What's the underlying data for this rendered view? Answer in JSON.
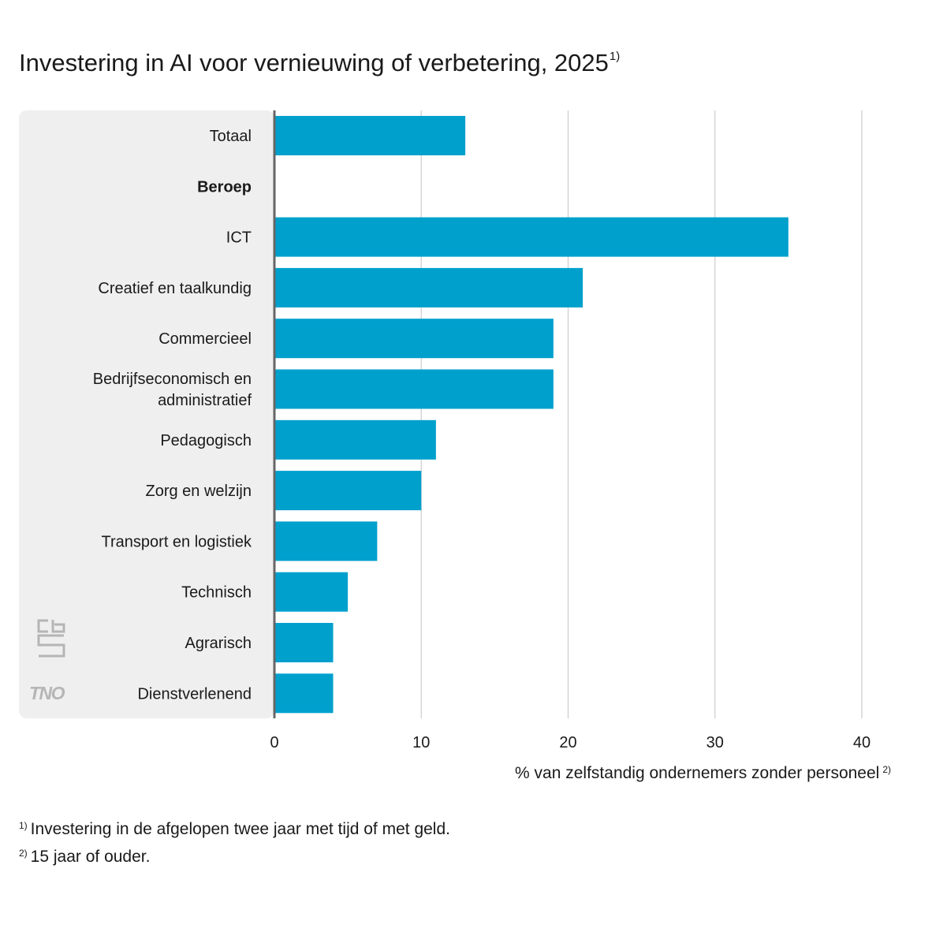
{
  "title": "Investering in AI voor vernieuwing of verbetering, 2025",
  "title_note": "1)",
  "colors": {
    "bar": "#00a0cd",
    "panel": "#efefef",
    "grid": "#cccccc",
    "axis": "#666666"
  },
  "chart_data": {
    "type": "bar",
    "orientation": "horizontal",
    "categories": [
      "Totaal",
      "Beroep",
      "ICT",
      "Creatief en taalkundig",
      "Commercieel",
      "Bedrijfseconomisch en administratief",
      "Pedagogisch",
      "Zorg en welzijn",
      "Transport en logistiek",
      "Technisch",
      "Agrarisch",
      "Dienstverlenend"
    ],
    "category_lines": [
      [
        "Totaal"
      ],
      [
        "Beroep"
      ],
      [
        "ICT"
      ],
      [
        "Creatief en taalkundig"
      ],
      [
        "Commercieel"
      ],
      [
        "Bedrijfseconomisch en",
        "administratief"
      ],
      [
        "Pedagogisch"
      ],
      [
        "Zorg en welzijn"
      ],
      [
        "Transport en logistiek"
      ],
      [
        "Technisch"
      ],
      [
        "Agrarisch"
      ],
      [
        "Dienstverlenend"
      ]
    ],
    "bold_categories": [
      "Beroep"
    ],
    "values": [
      13,
      null,
      35,
      21,
      19,
      19,
      11,
      10,
      7,
      5,
      4,
      4
    ],
    "xlim": [
      0,
      40
    ],
    "xticks": [
      0,
      10,
      20,
      30,
      40
    ],
    "xlabel": "% van zelfstandig ondernemers zonder personeel",
    "xlabel_note": "2)",
    "grid": "vertical"
  },
  "footnotes": [
    {
      "mark": "1)",
      "text": "Investering in de afgelopen twee jaar met tijd of met geld."
    },
    {
      "mark": "2)",
      "text": "15 jaar of ouder."
    }
  ],
  "logos": {
    "cbs": "cbs",
    "tno": "TNO"
  }
}
